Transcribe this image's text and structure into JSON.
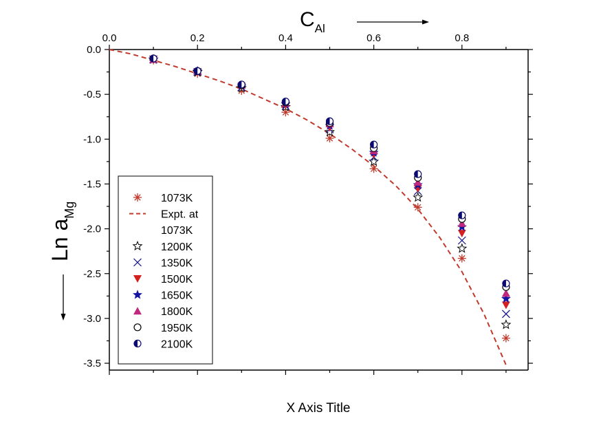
{
  "chart_data": {
    "type": "scatter",
    "xlabel": "X Axis Title",
    "top_axis_label": "C",
    "top_axis_label_sub": "Al",
    "ylabel": "Ln a",
    "ylabel_sub": "Mg",
    "xlim": [
      0.0,
      0.95
    ],
    "ylim": [
      -3.6,
      0.0
    ],
    "x_ticks": [
      0.0,
      0.2,
      0.4,
      0.6,
      0.8
    ],
    "x_tick_labels": [
      "0.0",
      "0.2",
      "0.4",
      "0.6",
      "0.8"
    ],
    "y_ticks": [
      0.0,
      -0.5,
      -1.0,
      -1.5,
      -2.0,
      -2.5,
      -3.0,
      -3.5
    ],
    "y_tick_labels": [
      "0.0",
      "-0.5",
      "-1.0",
      "-1.5",
      "-2.0",
      "-2.5",
      "-3.0",
      "-3.5"
    ],
    "grid": false,
    "legend_position": "bottom-left",
    "x": [
      0.1,
      0.2,
      0.3,
      0.4,
      0.5,
      0.6,
      0.7,
      0.8,
      0.9
    ],
    "series": [
      {
        "name": "1073K",
        "marker": "asterisk",
        "color": "#c0392b",
        "values": [
          -0.12,
          -0.27,
          -0.46,
          -0.7,
          -0.99,
          -1.33,
          -1.76,
          -2.33,
          -3.22
        ]
      },
      {
        "name": "Expt. at 1073K",
        "legend_lines": [
          "Expt. at",
          "1073K"
        ],
        "marker": "dashed-line",
        "color": "#c0392b",
        "line_x": [
          0.0,
          0.05,
          0.1,
          0.15,
          0.2,
          0.25,
          0.3,
          0.35,
          0.4,
          0.45,
          0.5,
          0.55,
          0.6,
          0.65,
          0.7,
          0.75,
          0.8,
          0.85,
          0.9
        ],
        "line_y": [
          0.0,
          -0.05,
          -0.12,
          -0.19,
          -0.27,
          -0.35,
          -0.44,
          -0.55,
          -0.66,
          -0.79,
          -0.94,
          -1.11,
          -1.3,
          -1.52,
          -1.78,
          -2.1,
          -2.48,
          -2.95,
          -3.52
        ]
      },
      {
        "name": "1200K",
        "marker": "star-open",
        "color": "#000000",
        "values": [
          -0.11,
          -0.25,
          -0.43,
          -0.64,
          -0.92,
          -1.25,
          -1.65,
          -2.22,
          -3.07
        ]
      },
      {
        "name": "1350K",
        "marker": "x",
        "color": "#1f1f8f",
        "values": [
          -0.11,
          -0.25,
          -0.42,
          -0.63,
          -0.89,
          -1.2,
          -1.58,
          -2.13,
          -2.95
        ]
      },
      {
        "name": "1500K",
        "marker": "triangle-down",
        "color": "#d62020",
        "values": [
          -0.11,
          -0.25,
          -0.41,
          -0.62,
          -0.87,
          -1.17,
          -1.55,
          -2.05,
          -2.85
        ]
      },
      {
        "name": "1650K",
        "marker": "star-filled",
        "color": "#1414a0",
        "values": [
          -0.11,
          -0.24,
          -0.41,
          -0.61,
          -0.85,
          -1.15,
          -1.51,
          -1.98,
          -2.78
        ]
      },
      {
        "name": "1800K",
        "marker": "triangle-up",
        "color": "#c0287e",
        "values": [
          -0.11,
          -0.24,
          -0.4,
          -0.6,
          -0.83,
          -1.13,
          -1.48,
          -1.94,
          -2.72
        ]
      },
      {
        "name": "1950K",
        "marker": "circle-open",
        "color": "#000000",
        "values": [
          -0.1,
          -0.24,
          -0.4,
          -0.59,
          -0.82,
          -1.1,
          -1.43,
          -1.89,
          -2.65
        ]
      },
      {
        "name": "2100K",
        "marker": "circle-half",
        "color": "#0a0a70",
        "values": [
          -0.1,
          -0.24,
          -0.39,
          -0.58,
          -0.8,
          -1.06,
          -1.39,
          -1.85,
          -2.61
        ]
      }
    ]
  }
}
